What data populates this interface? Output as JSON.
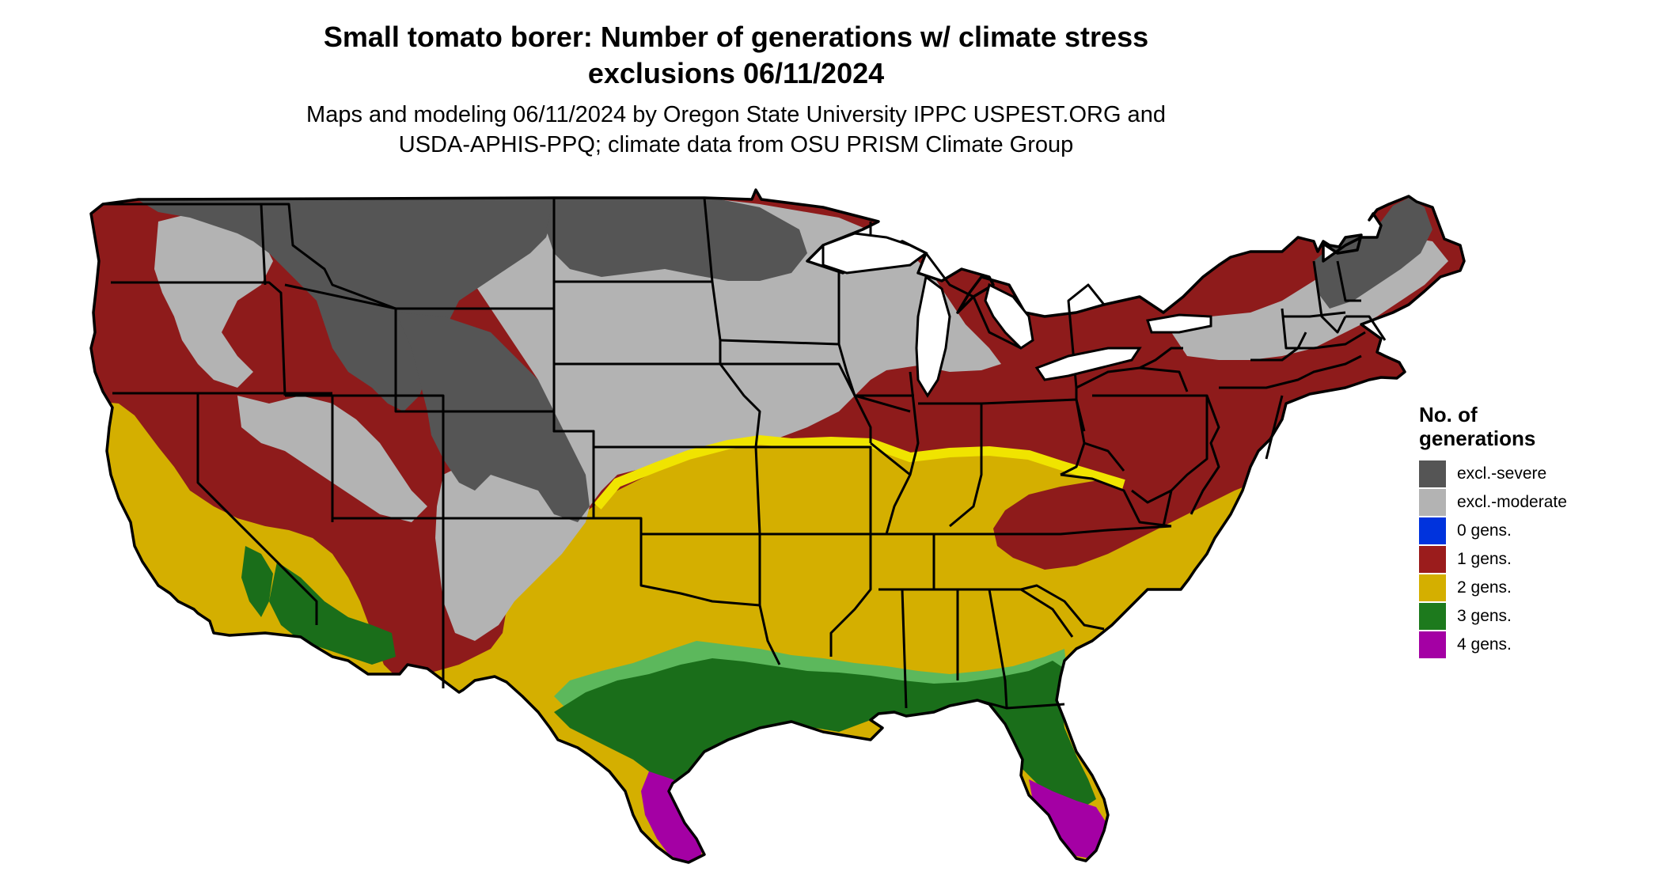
{
  "header": {
    "title_line1": "Small tomato borer: Number of generations w/ climate stress",
    "title_line2": "exclusions 06/11/2024",
    "subtitle_line1": "Maps and modeling 06/11/2024 by Oregon State University IPPC USPEST.ORG and",
    "subtitle_line2": "USDA-APHIS-PPQ; climate data from OSU PRISM Climate Group"
  },
  "legend": {
    "title_line1": "No. of",
    "title_line2": "generations",
    "items": [
      {
        "label": "excl.-severe",
        "color": "#555555"
      },
      {
        "label": "excl.-moderate",
        "color": "#b3b3b3"
      },
      {
        "label": "0 gens.",
        "color": "#0033dd"
      },
      {
        "label": "1 gens.",
        "color": "#9b1c1c"
      },
      {
        "label": "2 gens.",
        "color": "#d4af00"
      },
      {
        "label": "3 gens.",
        "color": "#1d7a1d"
      },
      {
        "label": "4 gens.",
        "color": "#a400a4"
      }
    ]
  },
  "map": {
    "region": "conterminous United States",
    "zone_colors": {
      "excl_severe": "#555555",
      "excl_moderate": "#b3b3b3",
      "gens_1": "#8e1b1b",
      "gens_2": "#d4af00",
      "gens_2_edge": "#f0e400",
      "gens_3": "#1a6e1a",
      "gens_3_light": "#5cb85c",
      "gens_4": "#a400a4",
      "border": "#000000"
    }
  }
}
